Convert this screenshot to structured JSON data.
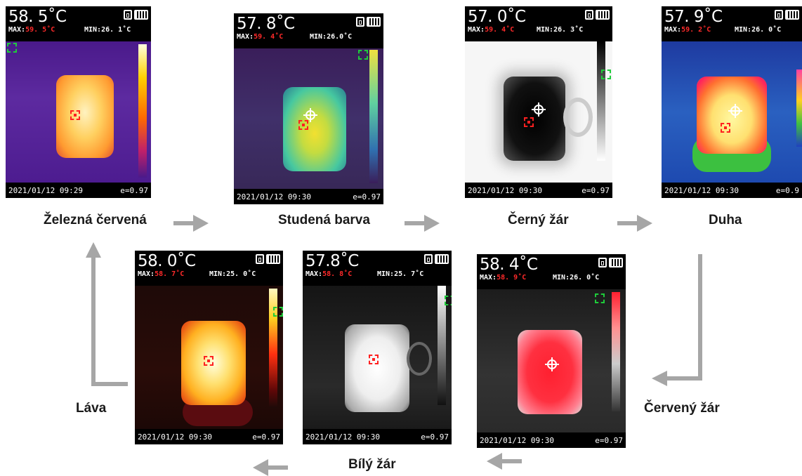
{
  "panels": [
    {
      "temp": "58. 5˚C",
      "max_label": "MAX:",
      "max": "59. 5˚C",
      "min": "MIN:26. 1˚C",
      "date": "2021/01/12 09:29",
      "emissivity": "e=0.97",
      "label": "Železná červená"
    },
    {
      "temp": "57. 8˚C",
      "max_label": "MAX:",
      "max": "59. 4˚C",
      "min": "MIN:26.0˚C",
      "date": "2021/01/12 09:30",
      "emissivity": "e=0.97",
      "label": "Studená barva"
    },
    {
      "temp": "57. 0˚C",
      "max_label": "MAX:",
      "max": "59. 4˚C",
      "min": "MIN:26. 3˚C",
      "date": "2021/01/12 09:30",
      "emissivity": "e=0.97",
      "label": "Černý žár"
    },
    {
      "temp": "57. 9˚C",
      "max_label": "MAX:",
      "max": "59. 2˚C",
      "min": "MIN:26. 0˚C",
      "date": "2021/01/12 09:30",
      "emissivity": "e=0.9",
      "label": "Duha"
    },
    {
      "temp": "58. 4˚C",
      "max_label": "MAX:",
      "max": "58. 9˚C",
      "min": "MIN:26. 0˚C",
      "date": "2021/01/12 09:30",
      "emissivity": "e=0.97",
      "label": "Červený žár"
    },
    {
      "temp": "57.8˚C",
      "max_label": "MAX:",
      "max": "58. 8˚C",
      "min": "MIN:25. 7˚C",
      "date": "2021/01/12 09:30",
      "emissivity": "e=0.97",
      "label": "Bílý žár"
    },
    {
      "temp": "58. 0˚C",
      "max_label": "MAX:",
      "max": "58. 7˚C",
      "min": "MIN:25. 0˚C",
      "date": "2021/01/12 09:30",
      "emissivity": "e=0.97",
      "label": "Láva"
    }
  ],
  "colors": {
    "arrow": "#a6a6a6",
    "max_value": "#ff2a2a",
    "label_text": "#1a1a1a"
  },
  "icons": [
    "save-icon",
    "battery-icon",
    "target-icon",
    "crosshair-icon",
    "arrow-right-icon",
    "arrow-left-icon",
    "arrow-up-icon",
    "arrow-down-left-icon"
  ]
}
